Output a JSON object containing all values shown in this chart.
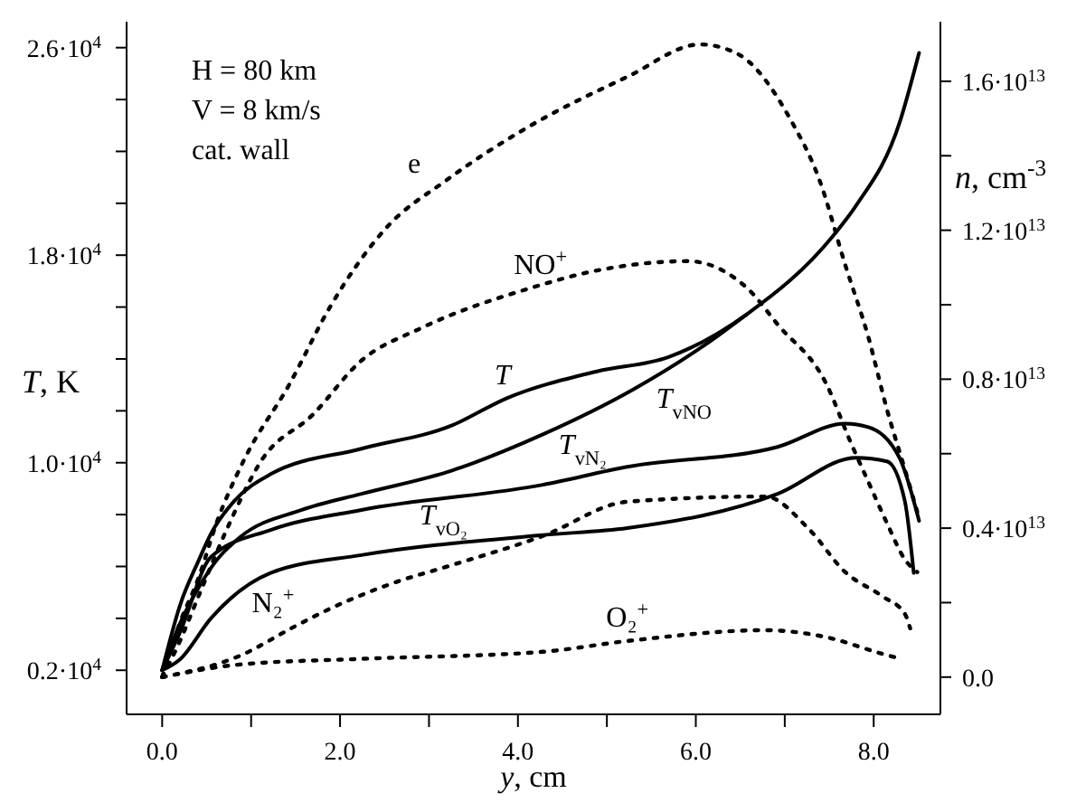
{
  "chart_data": {
    "type": "line",
    "xlabel": "y, cm",
    "ylabel": "T, K",
    "y2label": "n, cm$^{-3}$",
    "annotations": [
      "H = 80 km",
      "V = 8 km/s",
      "cat. wall"
    ],
    "xlim": [
      -0.4,
      8.75
    ],
    "xticks": [
      {
        "value": 0,
        "label": "0.0"
      },
      {
        "value": 1,
        "label": null
      },
      {
        "value": 2,
        "label": "2.0"
      },
      {
        "value": 3,
        "label": null
      },
      {
        "value": 4,
        "label": "4.0"
      },
      {
        "value": 5,
        "label": null
      },
      {
        "value": 6,
        "label": "6.0"
      },
      {
        "value": 7,
        "label": null
      },
      {
        "value": 8,
        "label": "8.0"
      }
    ],
    "ylim": [
      300,
      27000
    ],
    "yticks": [
      {
        "value": 2000,
        "label": "0.2·10$^{4}$"
      },
      {
        "value": 4000,
        "label": null
      },
      {
        "value": 6000,
        "label": null
      },
      {
        "value": 8000,
        "label": null
      },
      {
        "value": 10000,
        "label": "1.0·10$^{4}$"
      },
      {
        "value": 12000,
        "label": null
      },
      {
        "value": 14000,
        "label": null
      },
      {
        "value": 16000,
        "label": null
      },
      {
        "value": 18000,
        "label": "1.8·10$^{4}$"
      },
      {
        "value": 20000,
        "label": null
      },
      {
        "value": 22000,
        "label": null
      },
      {
        "value": 24000,
        "label": null
      },
      {
        "value": 26000,
        "label": "2.6·10$^{4}$"
      }
    ],
    "y2lim": [
      -1000000000000.0,
      17600000000000.0
    ],
    "y2ticks": [
      {
        "value": 0,
        "label": "0.0"
      },
      {
        "value": 2000000000000.0,
        "label": null
      },
      {
        "value": 4000000000000.0,
        "label": "0.4·10$^{13}$"
      },
      {
        "value": 6000000000000.0,
        "label": null
      },
      {
        "value": 8000000000000.0,
        "label": "0.8·10$^{13}$"
      },
      {
        "value": 10000000000000.0,
        "label": null
      },
      {
        "value": 12000000000000.0,
        "label": "1.2·10$^{13}$"
      },
      {
        "value": 14000000000000.0,
        "label": null
      },
      {
        "value": 16000000000000.0,
        "label": "1.6·10$^{13}$"
      }
    ],
    "marker": "none",
    "series": [
      {
        "name": "T",
        "color": "#000000",
        "line_style": "solid",
        "x": [
          0,
          0.2,
          0.41,
          0.55,
          0.81,
          1.22,
          2.24,
          3.26,
          3.87,
          4.89,
          5.7,
          6.58,
          7.54,
          7.8,
          8.29,
          8.51
        ],
        "values": [
          2000,
          4500,
          6230,
          7270,
          8520,
          9560,
          10540,
          11440,
          12480,
          13520,
          14080,
          15740,
          18730,
          19900,
          23100,
          25800
        ]
      },
      {
        "name": "T$_{vNO}$",
        "color": "#000000",
        "line_style": "solid",
        "x": [
          0,
          0.2,
          0.41,
          0.61,
          0.88,
          1.57,
          2.24,
          3.26,
          4.28,
          5.3,
          6.11,
          6.58
        ],
        "values": [
          2000,
          3800,
          5190,
          6230,
          7140,
          8180,
          8800,
          9700,
          11090,
          12830,
          14560,
          15740
        ]
      },
      {
        "name": "T$_{vN₂}$",
        "color": "#000000",
        "line_style": "solid",
        "x": [
          0,
          0.2,
          0.55,
          1.22,
          2.24,
          4.28,
          5.23,
          6.92,
          7.68,
          7.94,
          8.29,
          8.51
        ],
        "values": [
          2000,
          3460,
          6370,
          7410,
          8180,
          9150,
          9840,
          10610,
          11510,
          11370,
          10190,
          7760
        ]
      },
      {
        "name": "T$_{vO₂}$",
        "color": "#000000",
        "line_style": "solid",
        "x": [
          0,
          0.2,
          0.55,
          1.22,
          2.24,
          4.28,
          5.23,
          6.92,
          7.8,
          8.15,
          8.35,
          8.45
        ],
        "values": [
          2000,
          2420,
          4010,
          5750,
          6440,
          7210,
          7480,
          8800,
          10190,
          10050,
          8520,
          5750
        ]
      },
      {
        "name": "e",
        "color": "#000000",
        "line_style": "dotted",
        "axis": "y2",
        "x": [
          0,
          0.2,
          0.41,
          0.61,
          0.92,
          1.43,
          1.89,
          2.51,
          3.2,
          4.07,
          5.23,
          6.05,
          6.46,
          7.07,
          7.39,
          7.68,
          7.94,
          8.15,
          8.35,
          8.51
        ],
        "values": [
          0,
          1460000000000.0,
          2670000000000.0,
          4130000000000.0,
          5830000000000.0,
          7860000000000.0,
          9950000000000.0,
          12040000000000.0,
          13350000000000.0,
          14710000000000.0,
          16120000000000.0,
          16990000000000.0,
          16750000000000.0,
          14950000000000.0,
          13350000000000.0,
          11070000000000.0,
          9130000000000.0,
          7180000000000.0,
          5580000000000.0,
          4270000000000.0
        ]
      },
      {
        "name": "NO$^{+}$",
        "color": "#000000",
        "line_style": "dotted",
        "axis": "y2",
        "x": [
          0,
          0.2,
          0.41,
          0.71,
          1.12,
          1.69,
          2.24,
          2.91,
          4.13,
          4.89,
          5.91,
          6.58,
          6.92,
          7.47,
          7.74,
          7.94,
          8.15,
          8.35,
          8.49
        ],
        "values": [
          0,
          970000000000.0,
          2180000000000.0,
          3880000000000.0,
          5830000000000.0,
          7040000000000.0,
          8500000000000.0,
          9370000000000.0,
          10440000000000.0,
          10920000000000.0,
          11170000000000.0,
          10440000000000.0,
          9470000000000.0,
          7860000000000.0,
          6310000000000.0,
          5240000000000.0,
          4130000000000.0,
          3160000000000.0,
          2820000000000.0
        ]
      },
      {
        "name": "N₂$^{+}$",
        "color": "#000000",
        "line_style": "dotted",
        "axis": "y2",
        "x": [
          0,
          0.88,
          1.49,
          1.89,
          2.59,
          3.26,
          4.28,
          5.23,
          6.78,
          7.27,
          7.68,
          8.09,
          8.35,
          8.41
        ],
        "values": [
          0,
          580000000000.0,
          1360000000000.0,
          1840000000000.0,
          2520000000000.0,
          3010000000000.0,
          3790000000000.0,
          4710000000000.0,
          4850000000000.0,
          3980000000000.0,
          2820000000000.0,
          2180000000000.0,
          1700000000000.0,
          1310000000000.0
        ]
      },
      {
        "name": "O₂$^{+}$",
        "color": "#000000",
        "line_style": "dotted",
        "axis": "y2",
        "x": [
          0,
          0.88,
          2.24,
          4.28,
          5.23,
          6.78,
          7.47,
          8.09,
          8.31
        ],
        "values": [
          0,
          340000000000.0,
          490000000000.0,
          680000000000.0,
          970000000000.0,
          1260000000000.0,
          1070000000000.0,
          630000000000.0,
          490000000000.0
        ]
      }
    ]
  }
}
